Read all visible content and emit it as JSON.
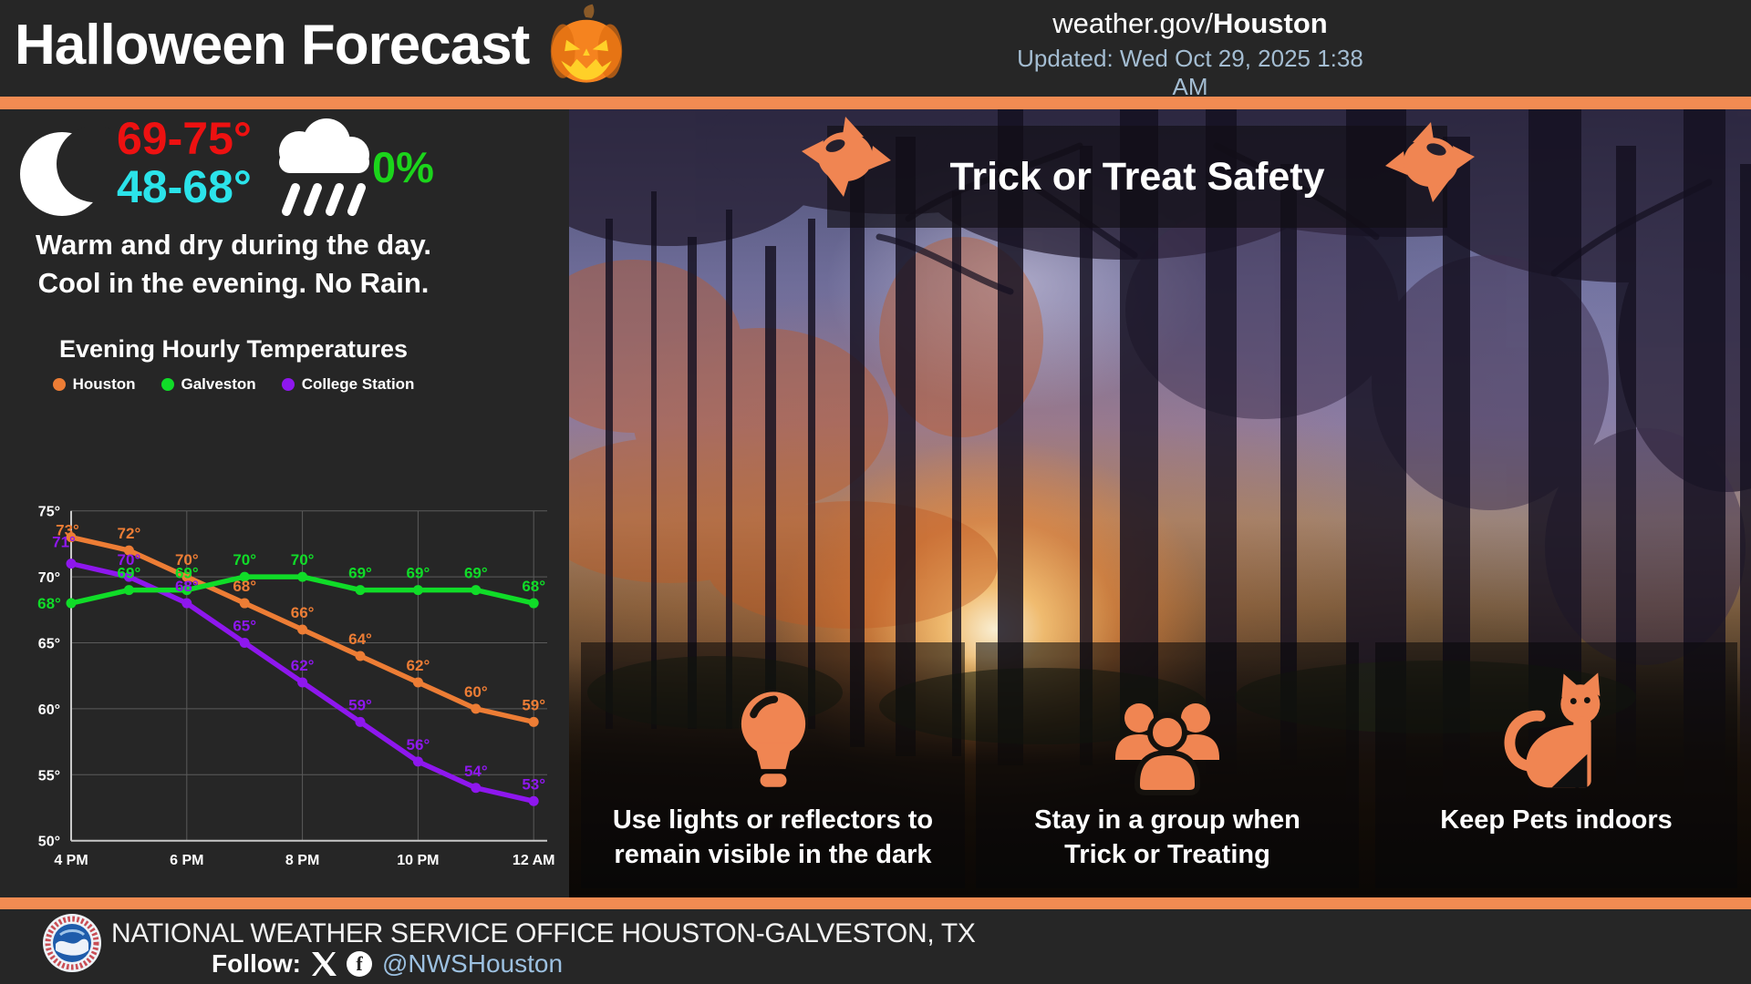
{
  "header": {
    "title": "Halloween Forecast",
    "site_regular": "weather.gov/",
    "site_bold": "Houston",
    "updated": "Updated: Wed Oct 29, 2025 1:38 AM"
  },
  "conditions": {
    "high_range": "69-75°",
    "low_range": "48-68°",
    "precip_chance": "0%",
    "summary_line1": "Warm and dry during the day.",
    "summary_line2": "Cool in the evening. No Rain."
  },
  "chart_data": {
    "type": "line",
    "title": "Evening Hourly Temperatures",
    "x": [
      "4 PM",
      "5 PM",
      "6 PM",
      "7 PM",
      "8 PM",
      "9 PM",
      "10 PM",
      "11 PM",
      "12 AM"
    ],
    "x_ticks": [
      {
        "i": 0,
        "label": "4 PM"
      },
      {
        "i": 2,
        "label": "6 PM"
      },
      {
        "i": 4,
        "label": "8 PM"
      },
      {
        "i": 6,
        "label": "10 PM"
      },
      {
        "i": 8,
        "label": "12 AM"
      }
    ],
    "ylim": [
      50,
      75
    ],
    "y_ticks": [
      75,
      70,
      65,
      60,
      55,
      50
    ],
    "y_tick_suffix": "°",
    "grid": true,
    "legend_position": "top",
    "series": [
      {
        "name": "Houston",
        "color": "#ED7D35",
        "values": [
          73,
          72,
          70,
          68,
          66,
          64,
          62,
          60,
          59
        ]
      },
      {
        "name": "Galveston",
        "color": "#10DC28",
        "values": [
          68,
          69,
          69,
          70,
          70,
          69,
          69,
          69,
          68
        ]
      },
      {
        "name": "College Station",
        "color": "#8E17EE",
        "values": [
          71,
          70,
          68,
          65,
          62,
          59,
          56,
          54,
          53
        ]
      }
    ]
  },
  "safety": {
    "banner_title": "Trick or Treat Safety",
    "tips": [
      {
        "icon": "lightbulb-icon",
        "text": "Use lights or reflectors to\nremain visible in the dark"
      },
      {
        "icon": "group-icon",
        "text": "Stay in a group when\nTrick or Treating"
      },
      {
        "icon": "cat-icon",
        "text": "Keep Pets indoors"
      }
    ]
  },
  "footer": {
    "office": "NATIONAL WEATHER SERVICE OFFICE HOUSTON-GALVESTON, TX",
    "follow_label": "Follow:",
    "handle": "@NWSHouston"
  },
  "icons": [
    "pumpkin-icon",
    "moon-icon",
    "rain-cloud-icon",
    "candy-icon",
    "lightbulb-icon",
    "group-icon",
    "cat-icon",
    "nws-logo",
    "x-logo",
    "facebook-logo"
  ],
  "colors": {
    "accent": "#F28B52",
    "red": "#ED1111",
    "cyan": "#2BE3EA",
    "green": "#1BD51B",
    "updated": "#A4BDD2",
    "handle": "#9CC0E0"
  }
}
